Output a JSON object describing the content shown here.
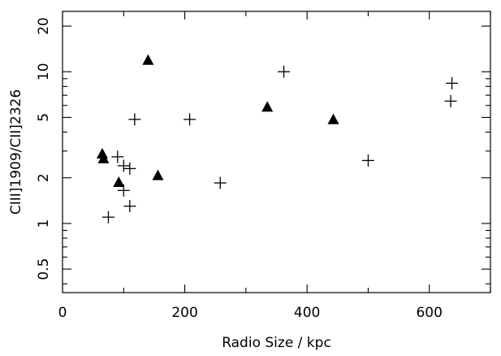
{
  "chart_data": {
    "type": "scatter",
    "title": "",
    "xlabel": "Radio Size / kpc",
    "ylabel": "CIII]1909/CII]2326",
    "xlim": [
      0,
      700
    ],
    "ylim": [
      0.35,
      25
    ],
    "y_scale": "log",
    "grid": false,
    "x_ticks": [
      0,
      200,
      400,
      600
    ],
    "x_tick_labels": [
      "0",
      "200",
      "400",
      "600"
    ],
    "y_ticks": [
      0.5,
      1,
      2,
      5,
      10,
      20
    ],
    "y_tick_labels": [
      "0.5",
      "1",
      "2",
      "5",
      "10",
      "20"
    ],
    "series": [
      {
        "marker": "triangle",
        "points": [
          {
            "x": 65,
            "y": 2.85
          },
          {
            "x": 67,
            "y": 2.65
          },
          {
            "x": 92,
            "y": 1.85
          },
          {
            "x": 140,
            "y": 11.8
          },
          {
            "x": 156,
            "y": 2.05
          },
          {
            "x": 335,
            "y": 5.8
          },
          {
            "x": 443,
            "y": 4.8
          }
        ]
      },
      {
        "marker": "plus",
        "points": [
          {
            "x": 75,
            "y": 1.1
          },
          {
            "x": 90,
            "y": 2.75
          },
          {
            "x": 100,
            "y": 2.4
          },
          {
            "x": 100,
            "y": 1.65
          },
          {
            "x": 110,
            "y": 2.3
          },
          {
            "x": 110,
            "y": 1.3
          },
          {
            "x": 118,
            "y": 4.85
          },
          {
            "x": 208,
            "y": 4.85
          },
          {
            "x": 258,
            "y": 1.85
          },
          {
            "x": 362,
            "y": 10.0
          },
          {
            "x": 500,
            "y": 2.6
          },
          {
            "x": 635,
            "y": 6.4
          },
          {
            "x": 637,
            "y": 8.4
          }
        ]
      }
    ]
  }
}
